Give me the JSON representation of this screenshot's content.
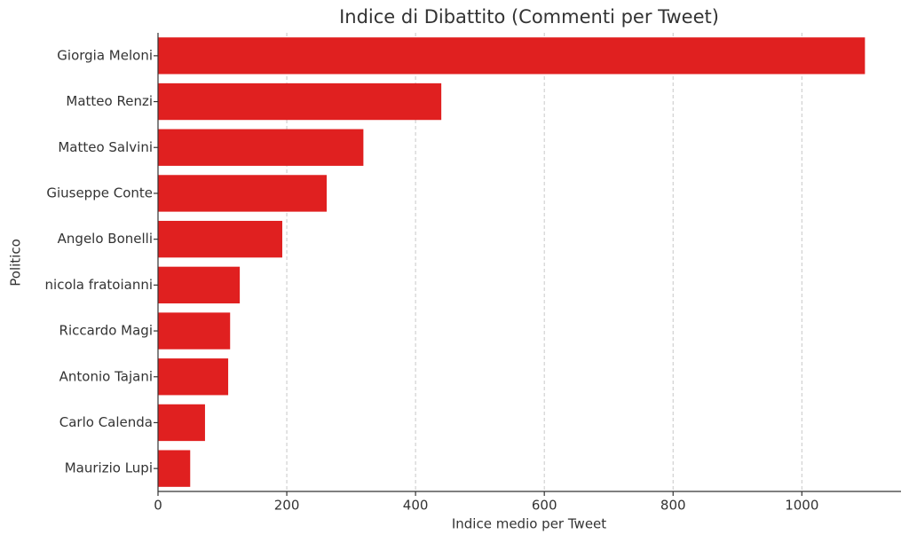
{
  "chart_data": {
    "type": "bar",
    "orientation": "horizontal",
    "title": "Indice di Dibattito (Commenti per Tweet)",
    "x_label": "Indice medio per Tweet",
    "y_label": "Politico",
    "categories": [
      "Giorgia Meloni",
      "Matteo Renzi",
      "Matteo Salvini",
      "Giuseppe Conte",
      "Angelo Bonelli",
      "nicola fratoianni",
      "Riccardo Magi",
      "Antonio Tajani",
      "Carlo Calenda",
      "Maurizio Lupi"
    ],
    "values": [
      1098,
      440,
      319,
      262,
      193,
      127,
      112,
      109,
      73,
      50
    ],
    "color": "#e02020",
    "xlim": [
      0,
      1154
    ],
    "xticks": [
      0,
      200,
      400,
      600,
      800,
      1000
    ],
    "grid": true
  }
}
